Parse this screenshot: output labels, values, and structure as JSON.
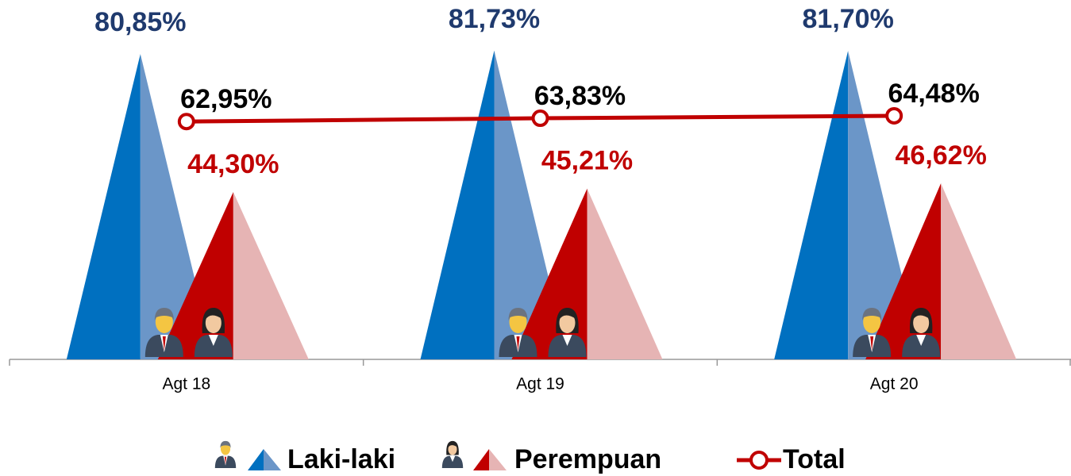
{
  "chart_data": {
    "type": "bar",
    "categories": [
      "Agt 18",
      "Agt 19",
      "Agt 20"
    ],
    "series": [
      {
        "name": "Laki-laki",
        "color": "#0070c0",
        "values": [
          80.85,
          81.73,
          81.7
        ],
        "value_labels": [
          "80,85%",
          "81,73%",
          "81,70%"
        ]
      },
      {
        "name": "Perempuan",
        "color": "#c00000",
        "values": [
          44.3,
          45.21,
          46.62
        ],
        "value_labels": [
          "44,30%",
          "45,21%",
          "46,62%"
        ]
      },
      {
        "name": "Total",
        "type": "line",
        "color": "#c00000",
        "values": [
          62.95,
          63.83,
          64.48
        ],
        "value_labels": [
          "62,95%",
          "63,83%",
          "64,48%"
        ]
      }
    ]
  }
}
